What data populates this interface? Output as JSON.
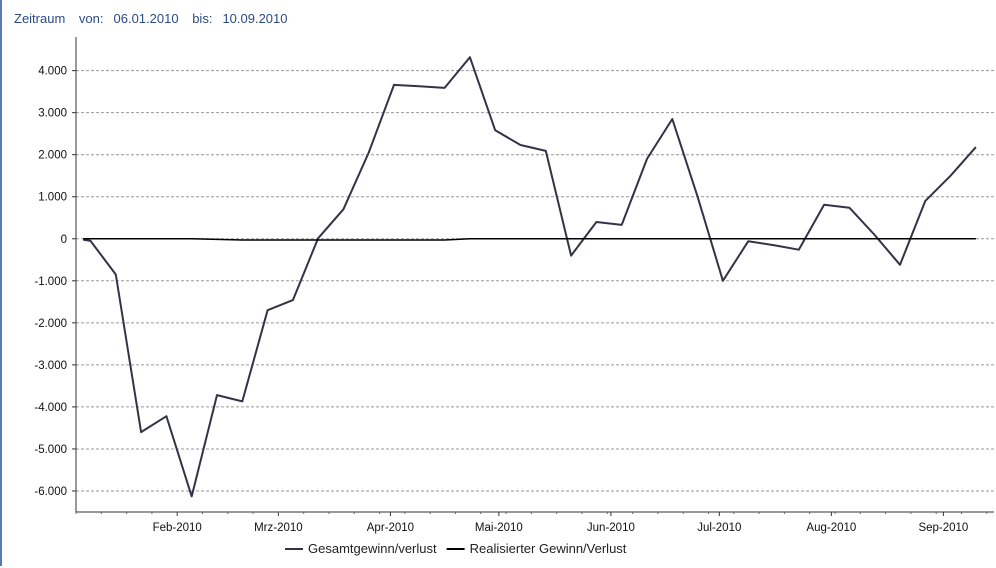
{
  "header": {
    "period_label": "Zeitraum",
    "from_label": "von:",
    "from_date": "06.01.2010",
    "to_label": "bis:",
    "to_date": "10.09.2010"
  },
  "colors": {
    "series_1": "#333347",
    "series_2": "#000000",
    "grid": "#9a9a9a",
    "frame": "#5a79b3",
    "header_text": "#2c4a86"
  },
  "chart_data": {
    "type": "line",
    "title": "",
    "xlabel": "",
    "ylabel": "",
    "ylim": [
      -6500,
      4800
    ],
    "yticks": [
      4000,
      3000,
      2000,
      1000,
      0,
      -1000,
      -2000,
      -3000,
      -4000,
      -5000,
      -6000
    ],
    "ytick_labels": [
      "4.000",
      "3.000",
      "2.000",
      "1.000",
      "0",
      "-1.000",
      "-2.000",
      "-3.000",
      "-4.000",
      "-5.000",
      "-6.000"
    ],
    "xlim": [
      "2010-01-04",
      "2010-09-15"
    ],
    "xticks": [
      {
        "date": "2010-02-01",
        "label": "Feb-2010"
      },
      {
        "date": "2010-03-01",
        "label": "Mrz-2010"
      },
      {
        "date": "2010-04-01",
        "label": "Apr-2010"
      },
      {
        "date": "2010-05-01",
        "label": "Mai-2010"
      },
      {
        "date": "2010-06-01",
        "label": "Jun-2010"
      },
      {
        "date": "2010-07-01",
        "label": "Jul-2010"
      },
      {
        "date": "2010-08-01",
        "label": "Aug-2010"
      },
      {
        "date": "2010-09-01",
        "label": "Sep-2010"
      }
    ],
    "grid": "horizontal dashed",
    "legend_position": "bottom",
    "series": [
      {
        "name": "Gesamtgewinn/verlust",
        "points": [
          [
            "2010-01-06",
            -20
          ],
          [
            "2010-01-08",
            -50
          ],
          [
            "2010-01-15",
            -850
          ],
          [
            "2010-01-22",
            -4600
          ],
          [
            "2010-01-29",
            -4220
          ],
          [
            "2010-02-05",
            -6130
          ],
          [
            "2010-02-12",
            -3720
          ],
          [
            "2010-02-19",
            -3870
          ],
          [
            "2010-02-26",
            -1700
          ],
          [
            "2010-03-05",
            -1460
          ],
          [
            "2010-03-12",
            10
          ],
          [
            "2010-03-19",
            700
          ],
          [
            "2010-03-26",
            2050
          ],
          [
            "2010-04-02",
            3660
          ],
          [
            "2010-04-09",
            3630
          ],
          [
            "2010-04-16",
            3590
          ],
          [
            "2010-04-23",
            4320
          ],
          [
            "2010-04-30",
            2580
          ],
          [
            "2010-05-07",
            2230
          ],
          [
            "2010-05-14",
            2090
          ],
          [
            "2010-05-21",
            -400
          ],
          [
            "2010-05-28",
            400
          ],
          [
            "2010-06-04",
            330
          ],
          [
            "2010-06-11",
            1900
          ],
          [
            "2010-06-18",
            2850
          ],
          [
            "2010-06-25",
            1000
          ],
          [
            "2010-07-02",
            -1000
          ],
          [
            "2010-07-09",
            -60
          ],
          [
            "2010-07-16",
            -150
          ],
          [
            "2010-07-23",
            -260
          ],
          [
            "2010-07-30",
            810
          ],
          [
            "2010-08-06",
            740
          ],
          [
            "2010-08-13",
            90
          ],
          [
            "2010-08-20",
            -620
          ],
          [
            "2010-08-27",
            900
          ],
          [
            "2010-09-03",
            1500
          ],
          [
            "2010-09-10",
            2180
          ]
        ]
      },
      {
        "name": "Realisierter Gewinn/Verlust",
        "points": [
          [
            "2010-01-06",
            0
          ],
          [
            "2010-02-05",
            0
          ],
          [
            "2010-02-19",
            -30
          ],
          [
            "2010-03-12",
            -30
          ],
          [
            "2010-04-16",
            -30
          ],
          [
            "2010-04-23",
            0
          ],
          [
            "2010-09-10",
            0
          ]
        ]
      }
    ]
  }
}
